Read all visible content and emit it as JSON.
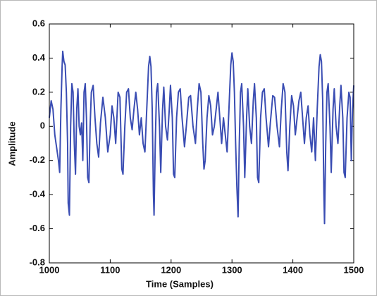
{
  "chart_data": {
    "type": "line",
    "xlabel": "Time (Samples)",
    "ylabel": "Amplitude",
    "color": "#3a4db3",
    "xlim": [
      1000,
      1500
    ],
    "xticks": [
      1000,
      1100,
      1200,
      1300,
      1400,
      1500
    ],
    "ylim": [
      -0.8,
      0.6
    ],
    "yticks": [
      -0.8,
      -0.6,
      -0.4,
      -0.2,
      0,
      0.2,
      0.4,
      0.6
    ],
    "grid": false,
    "x": [
      1000,
      1003,
      1006,
      1009,
      1011,
      1013,
      1015,
      1017,
      1019,
      1021,
      1022,
      1024,
      1026,
      1028,
      1030,
      1031,
      1033,
      1035,
      1037,
      1039,
      1041,
      1043,
      1045,
      1047,
      1049,
      1051,
      1053,
      1055,
      1057,
      1059,
      1061,
      1063,
      1065,
      1067,
      1069,
      1072,
      1075,
      1078,
      1081,
      1084,
      1088,
      1092,
      1096,
      1100,
      1103,
      1106,
      1109,
      1113,
      1116,
      1119,
      1121,
      1124,
      1127,
      1130,
      1133,
      1136,
      1139,
      1142,
      1145,
      1148,
      1151,
      1154,
      1157,
      1160,
      1163,
      1165,
      1167,
      1169,
      1171,
      1172,
      1174,
      1176,
      1178,
      1181,
      1183,
      1186,
      1188,
      1191,
      1194,
      1197,
      1199,
      1202,
      1204,
      1206,
      1209,
      1212,
      1215,
      1218,
      1222,
      1225,
      1229,
      1232,
      1236,
      1240,
      1243,
      1246,
      1249,
      1252,
      1254,
      1256,
      1259,
      1262,
      1265,
      1268,
      1271,
      1274,
      1277,
      1280,
      1283,
      1286,
      1289,
      1292,
      1295,
      1298,
      1300,
      1302,
      1304,
      1306,
      1308,
      1310,
      1312,
      1314,
      1316,
      1319,
      1321,
      1324,
      1326,
      1329,
      1332,
      1335,
      1337,
      1340,
      1342,
      1344,
      1347,
      1350,
      1353,
      1356,
      1360,
      1363,
      1367,
      1370,
      1374,
      1378,
      1381,
      1384,
      1387,
      1390,
      1392,
      1395,
      1398,
      1401,
      1404,
      1407,
      1410,
      1413,
      1416,
      1419,
      1422,
      1425,
      1428,
      1431,
      1434,
      1437,
      1440,
      1443,
      1445,
      1447,
      1449,
      1451,
      1452,
      1454,
      1456,
      1458,
      1461,
      1463,
      1466,
      1468,
      1471,
      1474,
      1477,
      1479,
      1482,
      1484,
      1486,
      1489,
      1492,
      1494,
      1496,
      1498,
      1500
    ],
    "values": [
      0.05,
      0.15,
      0.1,
      -0.05,
      -0.1,
      -0.15,
      -0.2,
      -0.27,
      0.1,
      0.35,
      0.44,
      0.38,
      0.36,
      0.2,
      -0.1,
      -0.45,
      -0.52,
      0.0,
      0.25,
      0.2,
      -0.1,
      -0.28,
      0.1,
      0.22,
      0.0,
      -0.05,
      0.02,
      -0.2,
      0.2,
      0.25,
      0.05,
      -0.3,
      -0.33,
      0.0,
      0.2,
      0.24,
      0.05,
      -0.1,
      -0.18,
      0.02,
      0.17,
      0.05,
      -0.15,
      -0.05,
      0.12,
      0.05,
      -0.1,
      0.2,
      0.17,
      -0.25,
      -0.28,
      0.0,
      0.2,
      0.22,
      0.05,
      -0.02,
      0.1,
      0.2,
      0.1,
      -0.05,
      0.05,
      -0.1,
      -0.15,
      0.1,
      0.35,
      0.41,
      0.35,
      0.1,
      -0.4,
      -0.52,
      -0.1,
      0.2,
      0.25,
      0.0,
      -0.27,
      0.1,
      0.23,
      0.0,
      -0.08,
      0.1,
      0.24,
      0.05,
      -0.28,
      -0.3,
      0.05,
      0.2,
      0.22,
      0.05,
      -0.12,
      0.0,
      0.17,
      0.18,
      0.0,
      -0.1,
      0.1,
      0.25,
      0.2,
      -0.1,
      -0.25,
      -0.2,
      0.05,
      0.18,
      0.12,
      -0.05,
      0.0,
      0.1,
      0.2,
      0.05,
      -0.1,
      0.05,
      -0.05,
      -0.15,
      0.1,
      0.36,
      0.43,
      0.38,
      0.2,
      -0.1,
      -0.35,
      -0.53,
      -0.1,
      0.2,
      0.25,
      0.0,
      -0.3,
      0.05,
      0.22,
      0.0,
      -0.1,
      0.15,
      0.25,
      0.05,
      -0.3,
      -0.33,
      0.05,
      0.2,
      0.22,
      0.05,
      -0.12,
      0.02,
      0.18,
      0.17,
      0.0,
      -0.12,
      0.1,
      0.25,
      0.2,
      -0.15,
      -0.26,
      0.0,
      0.18,
      0.12,
      -0.05,
      0.05,
      0.15,
      0.2,
      0.05,
      -0.1,
      0.05,
      0.12,
      -0.05,
      -0.15,
      0.05,
      -0.2,
      0.1,
      0.35,
      0.42,
      0.38,
      0.15,
      -0.4,
      -0.57,
      -0.1,
      0.2,
      0.25,
      0.0,
      -0.27,
      0.1,
      0.22,
      0.0,
      -0.1,
      0.12,
      0.24,
      0.05,
      -0.27,
      -0.3,
      0.05,
      0.2,
      0.17,
      -0.2,
      0.1,
      0.24
    ]
  }
}
